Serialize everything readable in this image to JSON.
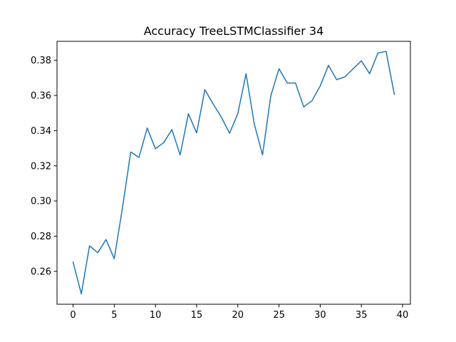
{
  "chart_data": {
    "type": "line",
    "title": "Accuracy TreeLSTMClassifier 34",
    "xlabel": "",
    "ylabel": "",
    "xlim": [
      -1.95,
      40.95
    ],
    "ylim": [
      0.2413,
      0.3908
    ],
    "x_ticks": [
      0,
      5,
      10,
      15,
      20,
      25,
      30,
      35,
      40
    ],
    "y_ticks": [
      0.26,
      0.28,
      0.3,
      0.32,
      0.34,
      0.36,
      0.38
    ],
    "grid": false,
    "legend": "none",
    "series": [
      {
        "color": "#1f77b4",
        "x": [
          0,
          1,
          2,
          3,
          4,
          5,
          6,
          7,
          8,
          9,
          10,
          11,
          12,
          13,
          14,
          15,
          16,
          17,
          18,
          19,
          20,
          21,
          22,
          23,
          24,
          25,
          26,
          27,
          28,
          29,
          30,
          31,
          32,
          33,
          34,
          35,
          36,
          37,
          38,
          39
        ],
        "values": [
          0.2653,
          0.2472,
          0.2745,
          0.2706,
          0.2781,
          0.2672,
          0.2962,
          0.3279,
          0.3248,
          0.3415,
          0.3297,
          0.3332,
          0.3406,
          0.3262,
          0.3496,
          0.3387,
          0.3633,
          0.3552,
          0.3477,
          0.3385,
          0.3497,
          0.3724,
          0.3438,
          0.3262,
          0.3598,
          0.3752,
          0.3671,
          0.3671,
          0.3535,
          0.357,
          0.3654,
          0.3771,
          0.369,
          0.3706,
          0.3752,
          0.3797,
          0.3724,
          0.3841,
          0.3851,
          0.3606
        ]
      }
    ]
  }
}
